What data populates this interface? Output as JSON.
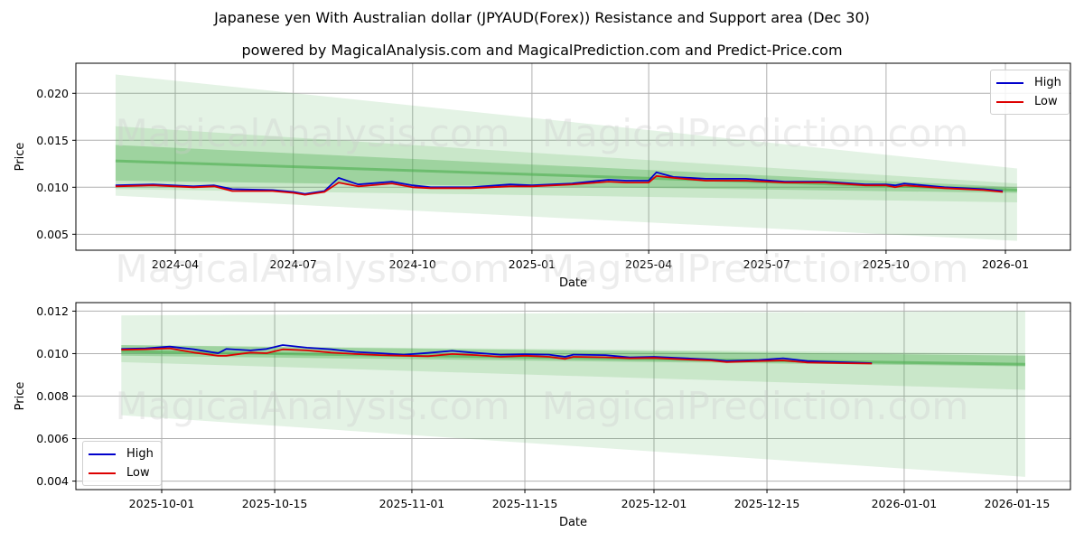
{
  "title": "Japanese yen With Australian dollar (JPYAUD(Forex)) Resistance and Support area (Dec 30)",
  "subtitle": "powered by MagicalAnalysis.com and MagicalPrediction.com and Predict-Price.com",
  "watermarks": [
    "MagicalAnalysis.com",
    "MagicalPrediction.com"
  ],
  "colors": {
    "high": "#0000cc",
    "low": "#dd0000",
    "band": "#4caf50",
    "grid": "#b0b0b0"
  },
  "legend": {
    "high": "High",
    "low": "Low"
  },
  "chart_data": [
    {
      "type": "line",
      "title": "Japanese yen With Australian dollar (JPYAUD(Forex)) Resistance and Support area (Dec 30)",
      "xlabel": "Date",
      "ylabel": "Price",
      "ylim": [
        0.0033,
        0.0232
      ],
      "grid": true,
      "legend_position": "upper right",
      "x_ticks": [
        "2024-04",
        "2024-07",
        "2024-10",
        "2025-01",
        "2025-04",
        "2025-07",
        "2025-10",
        "2026-01"
      ],
      "y_ticks": [
        "0.005",
        "0.010",
        "0.015",
        "0.020"
      ],
      "x": [
        "2024-02-15",
        "2024-03-15",
        "2024-04-15",
        "2024-05-01",
        "2024-05-15",
        "2024-06-15",
        "2024-07-01",
        "2024-07-10",
        "2024-07-25",
        "2024-08-05",
        "2024-08-20",
        "2024-09-15",
        "2024-10-01",
        "2024-10-15",
        "2024-11-15",
        "2024-12-15",
        "2025-01-01",
        "2025-02-01",
        "2025-03-01",
        "2025-03-15",
        "2025-04-01",
        "2025-04-07",
        "2025-04-20",
        "2025-05-15",
        "2025-06-15",
        "2025-07-15",
        "2025-08-15",
        "2025-09-15",
        "2025-10-01",
        "2025-10-08",
        "2025-10-15",
        "2025-11-15",
        "2025-12-15",
        "2025-12-30"
      ],
      "series": [
        {
          "name": "High",
          "values": [
            0.0102,
            0.0103,
            0.0101,
            0.0102,
            0.0098,
            0.0097,
            0.0095,
            0.0093,
            0.0096,
            0.011,
            0.0103,
            0.0106,
            0.0102,
            0.01,
            0.01,
            0.0103,
            0.0102,
            0.0104,
            0.0108,
            0.0107,
            0.0107,
            0.0116,
            0.0111,
            0.0109,
            0.0109,
            0.0106,
            0.0106,
            0.0103,
            0.0103,
            0.0102,
            0.0104,
            0.01,
            0.0098,
            0.0096
          ]
        },
        {
          "name": "Low",
          "values": [
            0.0101,
            0.0102,
            0.01,
            0.0101,
            0.0096,
            0.0096,
            0.0094,
            0.0092,
            0.0095,
            0.0105,
            0.0101,
            0.0104,
            0.01,
            0.0099,
            0.0099,
            0.0101,
            0.0101,
            0.0103,
            0.0106,
            0.0105,
            0.0105,
            0.0112,
            0.011,
            0.0107,
            0.0107,
            0.0105,
            0.0105,
            0.0102,
            0.0102,
            0.01,
            0.0102,
            0.0099,
            0.0097,
            0.0095
          ]
        }
      ],
      "bands": {
        "x_range": [
          "2024-02-15",
          "2026-01-10"
        ],
        "outer": {
          "upper": [
            0.022,
            0.012
          ],
          "lower": [
            0.0091,
            0.0043
          ]
        },
        "middle": {
          "upper": [
            0.0165,
            0.0104
          ],
          "lower": [
            0.0098,
            0.0084
          ]
        },
        "inner": {
          "upper": [
            0.0145,
            0.01
          ],
          "lower": [
            0.0107,
            0.0094
          ]
        },
        "center_line": [
          0.0128,
          0.0097
        ]
      }
    },
    {
      "type": "line",
      "title": "",
      "xlabel": "Date",
      "ylabel": "Price",
      "ylim": [
        0.0036,
        0.0124
      ],
      "grid": true,
      "legend_position": "lower left",
      "x_ticks": [
        "2025-10-01",
        "2025-10-15",
        "2025-11-01",
        "2025-11-15",
        "2025-12-01",
        "2025-12-15",
        "2026-01-01",
        "2026-01-15"
      ],
      "y_ticks": [
        "0.004",
        "0.006",
        "0.008",
        "0.010",
        "0.012"
      ],
      "x": [
        "2025-09-26",
        "2025-09-29",
        "2025-10-02",
        "2025-10-05",
        "2025-10-08",
        "2025-10-09",
        "2025-10-12",
        "2025-10-14",
        "2025-10-16",
        "2025-10-19",
        "2025-10-22",
        "2025-10-25",
        "2025-10-28",
        "2025-10-31",
        "2025-11-03",
        "2025-11-06",
        "2025-11-09",
        "2025-11-12",
        "2025-11-15",
        "2025-11-18",
        "2025-11-20",
        "2025-11-21",
        "2025-11-25",
        "2025-11-28",
        "2025-12-01",
        "2025-12-05",
        "2025-12-08",
        "2025-12-10",
        "2025-12-14",
        "2025-12-17",
        "2025-12-20",
        "2025-12-24",
        "2025-12-28"
      ],
      "series": [
        {
          "name": "High",
          "values": [
            0.01022,
            0.01025,
            0.01033,
            0.0102,
            0.01002,
            0.01022,
            0.01015,
            0.01022,
            0.0104,
            0.01028,
            0.0102,
            0.01008,
            0.01002,
            0.00995,
            0.01003,
            0.01013,
            0.01003,
            0.00995,
            0.00997,
            0.00995,
            0.00985,
            0.00995,
            0.00993,
            0.00982,
            0.00985,
            0.00978,
            0.00972,
            0.00965,
            0.0097,
            0.00978,
            0.00965,
            0.0096,
            0.00955
          ]
        },
        {
          "name": "Low",
          "values": [
            0.01018,
            0.0102,
            0.01025,
            0.01005,
            0.0099,
            0.0099,
            0.01005,
            0.01002,
            0.0102,
            0.01015,
            0.01005,
            0.00998,
            0.00993,
            0.0099,
            0.00988,
            0.00998,
            0.00993,
            0.00985,
            0.0099,
            0.00985,
            0.00975,
            0.00985,
            0.00983,
            0.00978,
            0.0098,
            0.00972,
            0.00968,
            0.0096,
            0.00965,
            0.00968,
            0.00958,
            0.00955,
            0.00953
          ]
        }
      ],
      "bands": {
        "x_range": [
          "2025-09-26",
          "2026-01-16"
        ],
        "outer": {
          "upper": [
            0.0118,
            0.012
          ],
          "lower": [
            0.0071,
            0.0042
          ]
        },
        "middle": {
          "upper": [
            0.0104,
            0.01
          ],
          "lower": [
            0.0096,
            0.0083
          ]
        },
        "inner": {
          "upper": [
            0.0104,
            0.0099
          ],
          "lower": [
            0.0099,
            0.0094
          ]
        },
        "center_line": [
          0.0101,
          0.0095
        ]
      }
    }
  ]
}
